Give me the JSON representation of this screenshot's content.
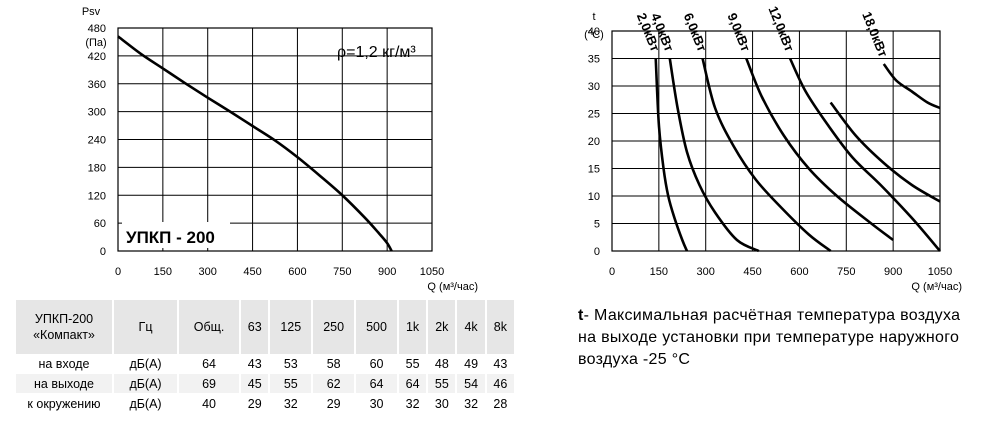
{
  "chart_data": [
    {
      "type": "line",
      "ylabel_top": "Psv",
      "ylabel_unit": "(Па)",
      "xlabel": "Q (м³/час)",
      "ylim": [
        0,
        480
      ],
      "xlim": [
        0,
        1050
      ],
      "xticks": [
        0,
        150,
        300,
        450,
        600,
        750,
        900,
        1050
      ],
      "yticks": [
        0,
        60,
        120,
        180,
        240,
        300,
        360,
        420,
        480
      ],
      "grid": true,
      "density_label": "ρ=1,2 кг/м³",
      "model_label": "УПКП - 200",
      "series": [
        {
          "x": [
            0,
            75,
            150,
            225,
            300,
            375,
            450,
            525,
            600,
            675,
            750,
            825,
            870,
            900,
            915
          ],
          "y": [
            462,
            425,
            393,
            361,
            330,
            300,
            269,
            238,
            202,
            162,
            120,
            72,
            40,
            17,
            0
          ]
        }
      ]
    },
    {
      "type": "line",
      "ylabel_top": "t",
      "ylabel_unit": "(°C)",
      "xlabel": "Q (м³/час)",
      "ylim": [
        0,
        40
      ],
      "xlim": [
        0,
        1050
      ],
      "xticks": [
        0,
        150,
        300,
        450,
        600,
        750,
        900,
        1050
      ],
      "yticks": [
        0,
        5,
        10,
        15,
        20,
        25,
        30,
        35,
        40
      ],
      "grid": true,
      "series": [
        {
          "name": "2,0кВт",
          "x": [
            140,
            150,
            165,
            180,
            200,
            225,
            240
          ],
          "y": [
            35,
            23,
            15,
            10,
            6,
            2,
            0
          ]
        },
        {
          "name": "4,0кВт",
          "x": [
            185,
            210,
            240,
            280,
            330,
            400,
            470
          ],
          "y": [
            35,
            26,
            18,
            12,
            7,
            2,
            0
          ]
        },
        {
          "name": "6,0кВт",
          "x": [
            290,
            330,
            390,
            460,
            540,
            630,
            700
          ],
          "y": [
            35,
            26,
            19,
            13,
            8,
            3,
            0
          ]
        },
        {
          "name": "9,0кВт",
          "x": [
            430,
            480,
            550,
            630,
            720,
            830,
            900
          ],
          "y": [
            35,
            28,
            21,
            15,
            10,
            5,
            2
          ]
        },
        {
          "name": "12,0кВт",
          "x": [
            570,
            620,
            690,
            770,
            860,
            960,
            1050
          ],
          "y": [
            35,
            29,
            23,
            17,
            12,
            6,
            0
          ]
        },
        {
          "name": "18,0кВт",
          "x": [
            870,
            910,
            960,
            1010,
            1050
          ],
          "y": [
            34,
            31,
            29,
            27,
            26
          ]
        }
      ],
      "extra_series": [
        {
          "name": "18,0кВт-low",
          "x": [
            700,
            780,
            870,
            960,
            1050
          ],
          "y": [
            27,
            21,
            16,
            12,
            9
          ]
        }
      ]
    }
  ],
  "table": {
    "header": [
      "УПКП-200 «Компакт»",
      "Гц",
      "Общ.",
      "63",
      "125",
      "250",
      "500",
      "1k",
      "2k",
      "4k",
      "8k"
    ],
    "rows": [
      [
        "на входе",
        "дБ(А)",
        "64",
        "43",
        "53",
        "58",
        "60",
        "55",
        "48",
        "49",
        "43"
      ],
      [
        "на выходе",
        "дБ(А)",
        "69",
        "45",
        "55",
        "62",
        "64",
        "64",
        "55",
        "54",
        "46"
      ],
      [
        "к окружению",
        "дБ(А)",
        "40",
        "29",
        "32",
        "29",
        "30",
        "32",
        "30",
        "32",
        "28"
      ]
    ]
  },
  "note": {
    "bold": "t",
    "text": "- Максимальная расчётная температура воздуха на выходе установки при температуре наружного воздуха -25 °C"
  }
}
